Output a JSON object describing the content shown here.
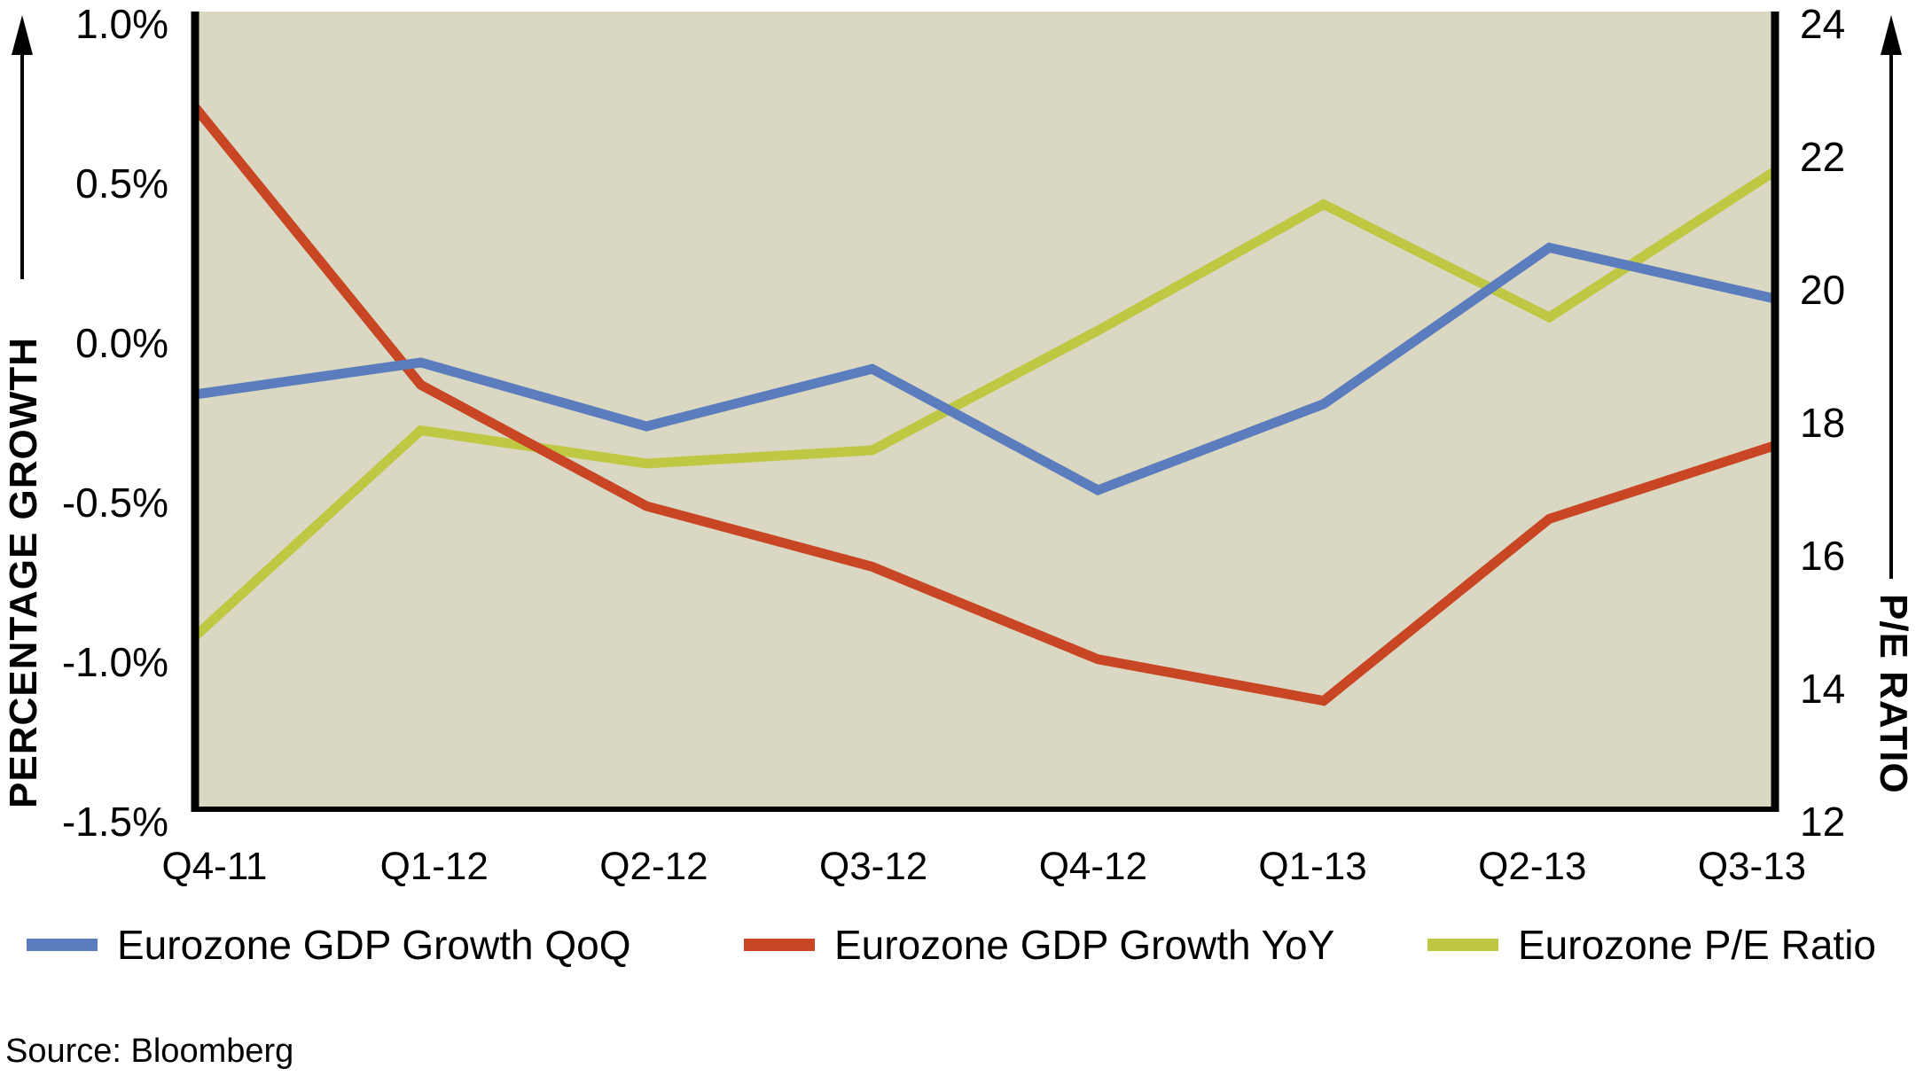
{
  "chart_data": {
    "type": "line",
    "title": "",
    "categories": [
      "Q4-11",
      "Q1-12",
      "Q2-12",
      "Q3-12",
      "Q4-12",
      "Q1-13",
      "Q2-13",
      "Q3-13"
    ],
    "series": [
      {
        "name": "Eurozone GDP Growth QoQ",
        "axis": "left",
        "color": "#5b7dbd",
        "values": [
          -0.2,
          -0.1,
          -0.3,
          -0.12,
          -0.5,
          -0.23,
          0.26,
          0.1
        ]
      },
      {
        "name": "Eurozone GDP Growth YoY",
        "axis": "left",
        "color": "#c84624",
        "values": [
          0.7,
          -0.17,
          -0.55,
          -0.74,
          -1.03,
          -1.16,
          -0.59,
          -0.36
        ]
      },
      {
        "name": "Eurozone P/E Ratio",
        "axis": "right",
        "color": "#bfc843",
        "values": [
          14.6,
          17.7,
          17.2,
          17.4,
          19.2,
          21.1,
          19.4,
          21.6
        ]
      }
    ],
    "ylabel": "PERCENTAGE GROWTH",
    "y2label": "P/E RATIO",
    "xlabel": "",
    "ylim": [
      -1.5,
      1.0
    ],
    "y2lim": [
      12,
      24
    ],
    "yticks": [
      "1.0%",
      "0.5%",
      "0.0%",
      "-0.5%",
      "-1.0%",
      "-1.5%"
    ],
    "ytick_values": [
      1.0,
      0.5,
      0.0,
      -0.5,
      -1.0,
      -1.5
    ],
    "y2ticks": [
      "24",
      "22",
      "20",
      "18",
      "16",
      "14",
      "12"
    ],
    "y2tick_values": [
      24,
      22,
      20,
      18,
      16,
      14,
      12
    ],
    "grid": false,
    "legend_position": "bottom",
    "plot_background": "#dad7c2"
  },
  "legend": [
    {
      "label": "Eurozone GDP Growth QoQ",
      "color": "#5b7dbd"
    },
    {
      "label": "Eurozone GDP Growth YoY",
      "color": "#c84624"
    },
    {
      "label": "Eurozone P/E Ratio",
      "color": "#bfc843"
    }
  ],
  "source": "Source: Bloomberg"
}
